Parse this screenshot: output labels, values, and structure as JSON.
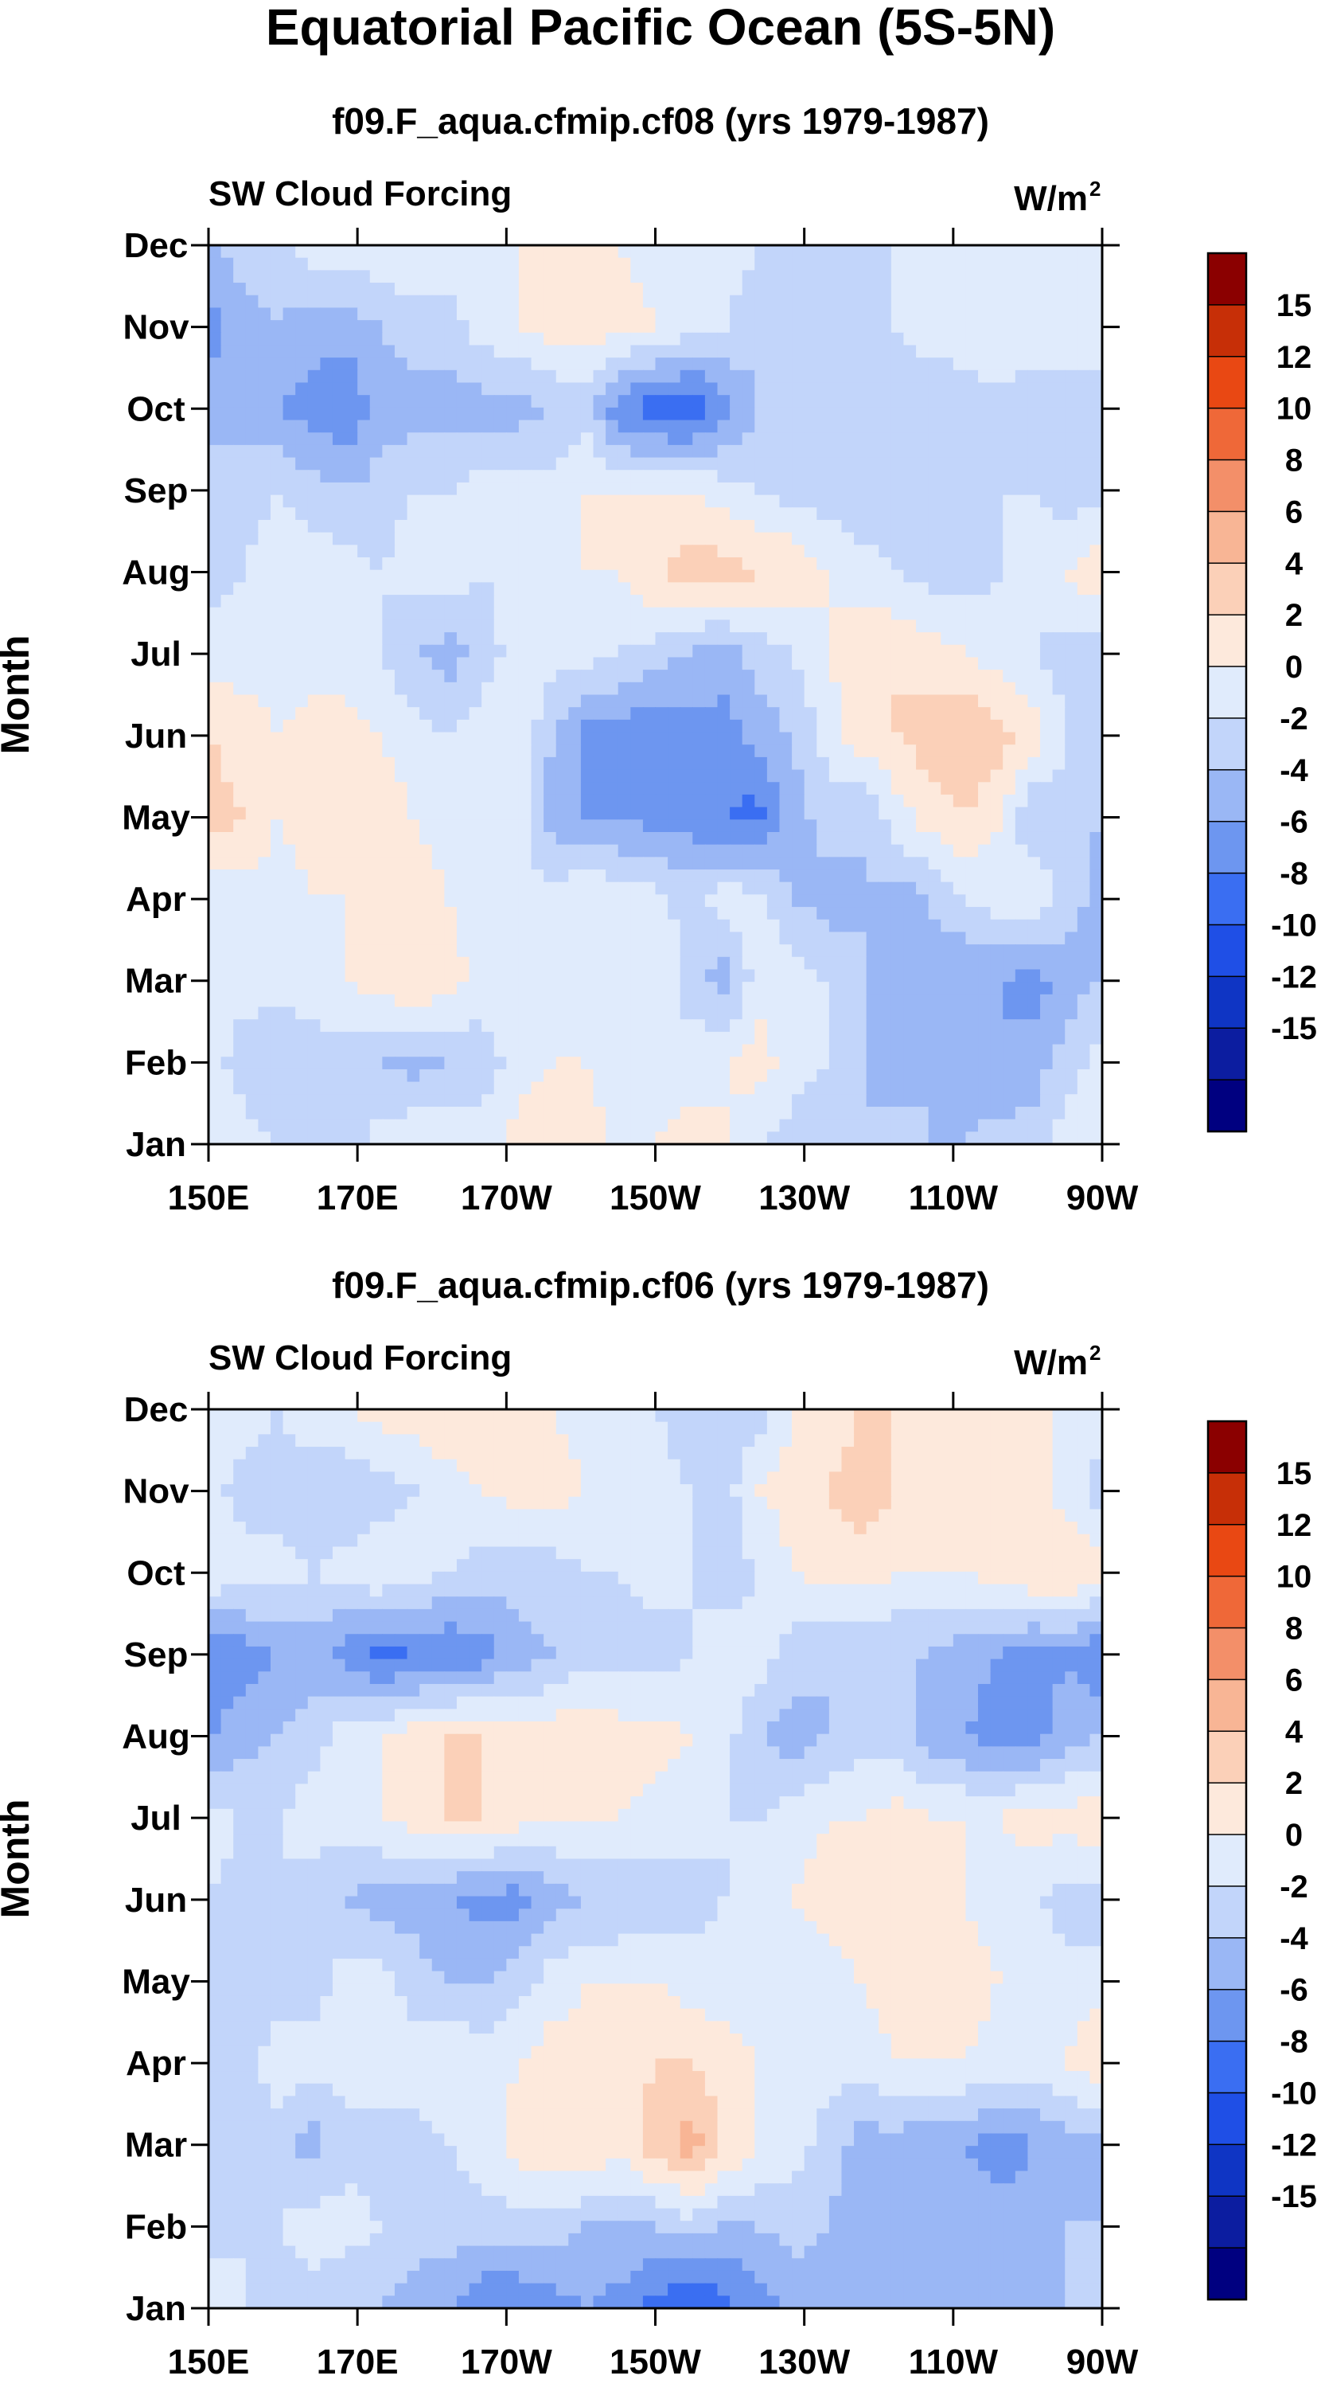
{
  "title": "Equatorial Pacific Ocean (5S-5N)",
  "colors": {
    "levels": [
      "#000080",
      "#0c1da0",
      "#0f35c4",
      "#1f4fe6",
      "#3a6ef2",
      "#6d96f0",
      "#9ab7f5",
      "#c2d5fa",
      "#e0ebfc",
      "#fde9dc",
      "#fbd0b8",
      "#f8b595",
      "#f38f69",
      "#ef6838",
      "#e94813",
      "#c72f07",
      "#8b0000"
    ]
  },
  "chart_data": [
    {
      "type": "heatmap",
      "subtitle": "f09.F_aqua.cfmip.cf08 (yrs 1979-1987)",
      "left_label": "SW Cloud Forcing",
      "units": "W/m",
      "units_sup": "2",
      "ylabel": "Month",
      "xlabel": "",
      "x_ticks": [
        "150E",
        "170E",
        "170W",
        "150W",
        "130W",
        "110W",
        "90W"
      ],
      "y_ticks": [
        "Jan",
        "Feb",
        "Mar",
        "Apr",
        "May",
        "Jun",
        "Jul",
        "Aug",
        "Sep",
        "Oct",
        "Nov",
        "Dec"
      ],
      "colorbar_labels": [
        "15",
        "12",
        "10",
        "8",
        "6",
        "4",
        "2",
        "0",
        "-2",
        "-4",
        "-6",
        "-8",
        "-10",
        "-12",
        "-15"
      ],
      "grid": [
        [
          1,
          1,
          0,
          -1,
          -1,
          1,
          2,
          2,
          1,
          3,
          4,
          3,
          1,
          2,
          3,
          2,
          0,
          -1,
          -2,
          -2,
          -1,
          -2,
          -2,
          -1,
          -1,
          1,
          2
        ],
        [
          1,
          -1,
          -2,
          -1,
          -1,
          -2,
          -3,
          -2,
          -1,
          1,
          2,
          2,
          1,
          0,
          1,
          2,
          3,
          1,
          0,
          -2,
          -3,
          -2,
          -3,
          -4,
          -3,
          -1,
          1
        ],
        [
          0,
          1,
          1,
          1,
          2,
          3,
          4,
          3,
          1,
          1,
          1,
          1,
          1,
          2,
          -1,
          -3,
          1,
          1,
          0,
          -2,
          -3,
          -3,
          -4,
          -4,
          -5,
          -3,
          -2
        ],
        [
          0,
          1,
          1,
          2,
          2,
          3,
          3,
          2,
          1,
          0,
          1,
          2,
          1,
          1,
          -1,
          1,
          1,
          -2,
          -3,
          -2,
          -3,
          -2,
          0,
          1,
          2,
          -1,
          -3
        ],
        [
          5,
          4,
          2,
          3,
          4,
          3,
          2,
          1,
          1,
          2,
          -3,
          -4,
          -4,
          -5,
          -5,
          -6,
          -7,
          -3,
          -1,
          -2,
          1,
          3,
          4,
          2,
          -2,
          -1,
          -2
        ],
        [
          4,
          3,
          2,
          3,
          3,
          2,
          1,
          0,
          1,
          2,
          -2,
          -5,
          -5,
          -6,
          -5,
          -5,
          -3,
          -2,
          1,
          3,
          4,
          5,
          6,
          5,
          3,
          0,
          -1
        ],
        [
          1,
          1,
          1,
          1,
          1,
          0,
          -2,
          -3,
          -1,
          1,
          1,
          1,
          0,
          -1,
          -2,
          -3,
          -1,
          0,
          2,
          3,
          4,
          3,
          2,
          1,
          0,
          -1,
          -1
        ],
        [
          -1,
          0,
          1,
          1,
          1,
          0,
          1,
          1,
          0,
          1,
          2,
          2,
          2,
          4,
          5,
          5,
          4,
          4,
          2,
          1,
          0,
          -1,
          -1,
          0,
          1,
          2,
          4
        ],
        [
          -1,
          -1,
          0,
          -1,
          -2,
          -1,
          0,
          0,
          1,
          1,
          1,
          2,
          2,
          2,
          2,
          1,
          0,
          -1,
          -1,
          -2,
          -1,
          -1,
          -1,
          0,
          0,
          -1,
          -1
        ],
        [
          -3,
          -3,
          -4,
          -5,
          -6,
          -3,
          -3,
          -3,
          -3,
          -3,
          -2,
          -1,
          -6,
          -7,
          -8,
          -5,
          -2,
          -1,
          -1,
          -1,
          -1,
          -2,
          -1,
          -1,
          -1,
          -1,
          -1
        ],
        [
          -5,
          -3,
          -2,
          -3,
          -3,
          -2,
          -1,
          -1,
          1,
          2,
          3,
          3,
          3,
          2,
          1,
          0,
          -1,
          -2,
          -2,
          -1,
          0,
          1,
          1,
          2,
          1,
          1,
          1
        ],
        [
          -2,
          -1,
          -1,
          1,
          1,
          2,
          2,
          2,
          2,
          2,
          2,
          2,
          2,
          1,
          1,
          1,
          0,
          -1,
          -1,
          -1,
          0,
          0,
          1,
          1,
          1,
          0,
          0
        ]
      ]
    },
    {
      "type": "heatmap",
      "subtitle": "f09.F_aqua.cfmip.cf06 (yrs 1979-1987)",
      "left_label": "SW Cloud Forcing",
      "units": "W/m",
      "units_sup": "2",
      "ylabel": "Month",
      "xlabel": "",
      "x_ticks": [
        "150E",
        "170E",
        "170W",
        "150W",
        "130W",
        "110W",
        "90W"
      ],
      "y_ticks": [
        "Jan",
        "Feb",
        "Mar",
        "Apr",
        "May",
        "Jun",
        "Jul",
        "Aug",
        "Sep",
        "Oct",
        "Nov",
        "Dec"
      ],
      "colorbar_labels": [
        "15",
        "12",
        "10",
        "8",
        "6",
        "4",
        "2",
        "0",
        "-2",
        "-4",
        "-6",
        "-8",
        "-10",
        "-12",
        "-15"
      ],
      "grid": [
        [
          2,
          0,
          -1,
          -1,
          -2,
          -2,
          -3,
          -4,
          -6,
          -6,
          -5,
          -4,
          -5,
          -7,
          -8,
          -7,
          -5,
          -4,
          -3,
          -3,
          -2,
          -2,
          -3,
          -4,
          -3,
          -2,
          -2
        ],
        [
          -1,
          0,
          0,
          1,
          1,
          0,
          -1,
          -1,
          -1,
          -1,
          -1,
          -2,
          -2,
          -2,
          -1,
          -2,
          -2,
          -1,
          -2,
          -3,
          -3,
          -3,
          -3,
          -3,
          -3,
          -2,
          -2
        ],
        [
          -1,
          -1,
          -1,
          -3,
          -1,
          -1,
          -1,
          0,
          1,
          3,
          4,
          4,
          3,
          5,
          7,
          4,
          2,
          1,
          -1,
          -3,
          -3,
          -4,
          -4,
          -5,
          -4,
          -3,
          -3
        ],
        [
          -1,
          -1,
          1,
          1,
          1,
          1,
          1,
          2,
          1,
          2,
          3,
          3,
          3,
          4,
          4,
          3,
          2,
          1,
          1,
          1,
          2,
          2,
          2,
          1,
          1,
          2,
          4
        ],
        [
          -1,
          -1,
          -1,
          -1,
          1,
          1,
          -1,
          -2,
          -2,
          -1,
          1,
          2,
          2,
          2,
          1,
          1,
          1,
          0,
          1,
          2,
          3,
          3,
          3,
          2,
          2,
          1,
          1
        ],
        [
          0,
          -1,
          0,
          -1,
          -2,
          -3,
          -3,
          -4,
          -5,
          -5,
          -3,
          -2,
          -2,
          -1,
          -1,
          0,
          1,
          2,
          3,
          3,
          2,
          2,
          2,
          1,
          0,
          -1,
          -1
        ],
        [
          1,
          0,
          0,
          1,
          1,
          2,
          3,
          4,
          4,
          3,
          2,
          2,
          2,
          1,
          1,
          0,
          0,
          1,
          2,
          2,
          3,
          2,
          2,
          2,
          3,
          3,
          4
        ],
        [
          -4,
          -3,
          -2,
          -1,
          1,
          2,
          3,
          4,
          4,
          3,
          3,
          4,
          3,
          3,
          2,
          1,
          -2,
          -3,
          -2,
          -1,
          -1,
          -3,
          -4,
          -5,
          -5,
          -3,
          -2
        ],
        [
          -6,
          -5,
          -4,
          -3,
          -5,
          -7,
          -6,
          -6,
          -5,
          -3,
          -2,
          -1,
          -1,
          -1,
          0,
          1,
          1,
          -1,
          -2,
          -2,
          -2,
          -2,
          -3,
          -4,
          -5,
          -4,
          -6
        ],
        [
          2,
          1,
          1,
          0,
          1,
          2,
          1,
          0,
          -1,
          -1,
          -1,
          0,
          0,
          1,
          0,
          -1,
          0,
          2,
          3,
          3,
          2,
          2,
          2,
          3,
          4,
          4,
          3
        ],
        [
          1,
          -1,
          -1,
          -1,
          -2,
          -1,
          0,
          1,
          2,
          3,
          3,
          2,
          1,
          1,
          0,
          -1,
          2,
          3,
          4,
          5,
          4,
          3,
          2,
          2,
          3,
          1,
          -1
        ],
        [
          1,
          1,
          0,
          1,
          2,
          3,
          3,
          4,
          4,
          3,
          2,
          1,
          1,
          0,
          -1,
          -2,
          -1,
          2,
          3,
          4,
          4,
          3,
          3,
          3,
          2,
          2,
          1
        ]
      ]
    }
  ]
}
